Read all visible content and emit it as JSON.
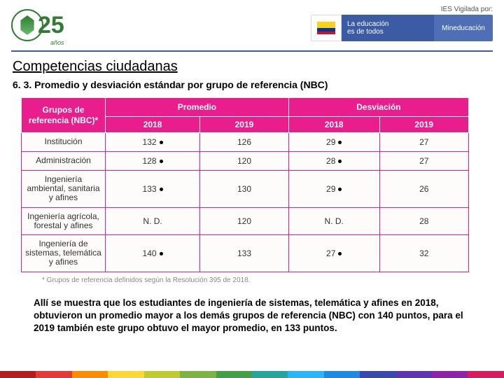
{
  "header": {
    "logo": {
      "number": "25",
      "anos": "años"
    },
    "ies_label": "IES Vigilada por:",
    "banner": {
      "edu_line1": "La educación",
      "edu_line2": "es de todos",
      "min": "Mineducación"
    }
  },
  "title": "Competencias ciudadanas",
  "subtitle": "6. 3. Promedio y desviación estándar por grupo de referencia (NBC)",
  "table": {
    "header_group": "Grupos de referencia (NBC)*",
    "header_promedio": "Promedio",
    "header_desviacion": "Desviación",
    "years": [
      "2018",
      "2019",
      "2018",
      "2019"
    ],
    "rows": [
      {
        "label": "Institución",
        "v": [
          "132",
          "126",
          "29",
          "27"
        ],
        "dots": [
          true,
          false,
          true,
          false
        ]
      },
      {
        "label": "Administración",
        "v": [
          "128",
          "120",
          "28",
          "27"
        ],
        "dots": [
          true,
          false,
          true,
          false
        ]
      },
      {
        "label": "Ingeniería ambiental, sanitaria y afines",
        "v": [
          "133",
          "130",
          "29",
          "26"
        ],
        "dots": [
          true,
          false,
          true,
          false
        ]
      },
      {
        "label": "Ingeniería agrícola, forestal y afines",
        "v": [
          "N. D.",
          "120",
          "N. D.",
          "28"
        ],
        "dots": [
          false,
          false,
          false,
          false
        ]
      },
      {
        "label": "Ingeniería de sistemas, telemática y afines",
        "v": [
          "140",
          "133",
          "27",
          "32"
        ],
        "dots": [
          true,
          false,
          true,
          false
        ]
      }
    ]
  },
  "footnote": "* Grupos de referencia definidos según la Resolución 395 de 2018.",
  "paragraph": "Allí se muestra que los estudiantes de ingeniería de sistemas, telemática y afines en 2018, obtuvieron un promedio mayor a los demás grupos de referencia (NBC) con 140 puntos, para el 2019 también este grupo obtuvo el mayor promedio, en 133 puntos.",
  "rainbow_colors": [
    "#b71c1c",
    "#e53935",
    "#fb8c00",
    "#fdd835",
    "#c0ca33",
    "#7cb342",
    "#43a047",
    "#26a69a",
    "#29b6f6",
    "#1e88e5",
    "#3949ab",
    "#5e35b1",
    "#8e24aa",
    "#d81b60"
  ]
}
